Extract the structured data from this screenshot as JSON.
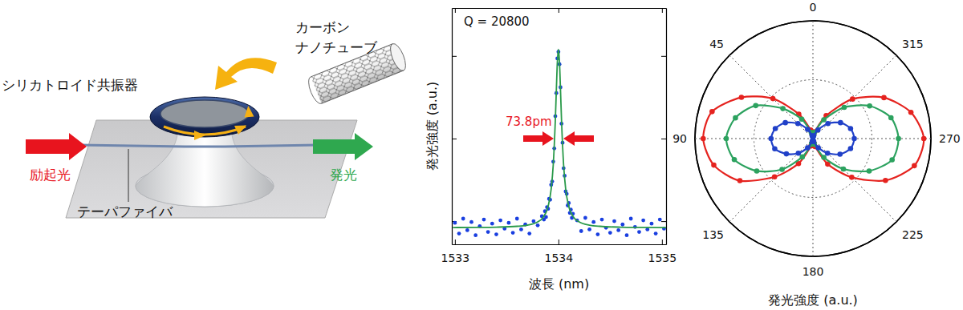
{
  "diagram": {
    "nanotube_label": [
      "カーボン",
      "ナノチューブ"
    ],
    "resonator_label": "シリカトロイド共振器",
    "excitation_label": "励起光",
    "emission_label": "発光",
    "fiber_label": "テーパファイバ"
  },
  "chart_data": [
    {
      "type": "scatter",
      "xlabel": "波長 (nm)",
      "ylabel": "発光強度 (a.u.)",
      "annotations": [
        {
          "text": "Q = 20800"
        },
        {
          "text": "73.8pm",
          "color": "#e8141e"
        }
      ],
      "xlim": [
        1532.97,
        1535.04
      ],
      "ylim": [
        -0.28,
        2.58
      ],
      "xticks": [
        1533,
        1534,
        1535
      ],
      "yticks": [
        0,
        1,
        2
      ],
      "tick_labels": "x",
      "series": [
        {
          "type": "scatter",
          "color": "#1a3fe0",
          "marker": "circle",
          "x": [
            1533,
            1533.04,
            1533.08,
            1533.12,
            1533.16,
            1533.2,
            1533.24,
            1533.28,
            1533.32,
            1533.36,
            1533.4,
            1533.44,
            1533.48,
            1533.52,
            1533.56,
            1533.6,
            1533.64,
            1533.68,
            1533.72,
            1533.76,
            1533.8,
            1533.84,
            1533.86,
            1533.87,
            1533.88,
            1533.89,
            1533.9,
            1533.91,
            1533.92,
            1533.93,
            1533.94,
            1533.95,
            1533.96,
            1533.97,
            1533.98,
            1533.99,
            1534,
            1534.01,
            1534.02,
            1534.03,
            1534.04,
            1534.05,
            1534.06,
            1534.07,
            1534.08,
            1534.09,
            1534.1,
            1534.11,
            1534.12,
            1534.13,
            1534.14,
            1534.18,
            1534.22,
            1534.26,
            1534.3,
            1534.34,
            1534.38,
            1534.42,
            1534.46,
            1534.5,
            1534.54,
            1534.58,
            1534.62,
            1534.66,
            1534.7,
            1534.74,
            1534.78,
            1534.82,
            1534.86,
            1534.9,
            1534.94,
            1534.98,
            1535.02
          ],
          "values": [
            -0.02,
            -0.15,
            0.03,
            -0.11,
            -0.01,
            -0.17,
            -0.06,
            0.02,
            -0.13,
            -0.03,
            -0.16,
            0.01,
            -0.09,
            -0.02,
            -0.14,
            0.03,
            -0.1,
            -0.04,
            -0.15,
            0,
            -0.05,
            0.06,
            0.02,
            0.12,
            0.05,
            0.17,
            0.15,
            0.27,
            0.26,
            0.44,
            0.48,
            0.72,
            0.88,
            1.27,
            1.55,
            1.97,
            2.05,
            1.9,
            1.62,
            1.18,
            0.95,
            0.64,
            0.55,
            0.36,
            0.33,
            0.19,
            0.22,
            0.1,
            0.14,
            0.04,
            0.09,
            0.01,
            -0.12,
            0.04,
            -0.1,
            -0.01,
            -0.16,
            0.02,
            -0.08,
            -0.14,
            0,
            -0.11,
            -0.04,
            -0.17,
            0.03,
            -0.07,
            -0.13,
            0.01,
            -0.1,
            -0.03,
            -0.15,
            0.02,
            -0.09
          ]
        },
        {
          "type": "line",
          "color": "#2a9a4a",
          "line_style": "solid",
          "x": [
            1532.98,
            1533.2,
            1533.4,
            1533.6,
            1533.7,
            1533.8,
            1533.85,
            1533.9,
            1533.93,
            1533.95,
            1533.97,
            1533.98,
            1533.99,
            1534,
            1534.01,
            1534.02,
            1534.03,
            1534.05,
            1534.07,
            1534.1,
            1534.15,
            1534.2,
            1534.3,
            1534.4,
            1534.6,
            1534.8,
            1535.04
          ],
          "values": [
            -0.077,
            -0.075,
            -0.072,
            -0.062,
            -0.048,
            -0.009,
            0.043,
            0.179,
            0.39,
            0.682,
            1.22,
            1.589,
            1.932,
            2.08,
            1.932,
            1.589,
            1.22,
            0.682,
            0.39,
            0.179,
            0.043,
            -0.009,
            -0.048,
            -0.062,
            -0.072,
            -0.075,
            -0.077
          ]
        }
      ]
    },
    {
      "type": "polar",
      "xlabel": "発光強度 (a.u.)",
      "x": [
        0,
        15,
        30,
        45,
        60,
        75,
        90,
        105,
        120,
        135,
        150,
        165,
        180,
        195,
        210,
        225,
        240,
        255,
        270,
        285,
        300,
        315,
        330,
        345
      ],
      "xticks": [
        0,
        45,
        90,
        135,
        180,
        225,
        270,
        315
      ],
      "ylim": [
        0,
        2
      ],
      "yticks": [
        0,
        1,
        2
      ],
      "tick_labels": "x",
      "grid": true,
      "series": [
        {
          "color": "#e5231f",
          "marker": "circle",
          "line_style": "solid",
          "values": [
            0.04,
            0.15,
            0.48,
            0.96,
            1.4,
            1.77,
            1.86,
            1.74,
            1.43,
            0.92,
            0.49,
            0.13,
            0.05,
            0.14,
            0.5,
            0.93,
            1.42,
            1.78,
            1.88,
            1.72,
            1.39,
            0.95,
            0.45,
            0.12
          ]
        },
        {
          "color": "#2ca25f",
          "marker": "circle",
          "line_style": "solid",
          "values": [
            0.03,
            0.11,
            0.38,
            0.72,
            1.12,
            1.36,
            1.47,
            1.38,
            1.1,
            0.74,
            0.36,
            0.1,
            0.04,
            0.1,
            0.37,
            0.73,
            1.1,
            1.39,
            1.45,
            1.37,
            1.11,
            0.75,
            0.37,
            0.11
          ]
        },
        {
          "color": "#2040c8",
          "marker": "circle",
          "line_style": "solid",
          "values": [
            0.02,
            0.05,
            0.18,
            0.36,
            0.54,
            0.66,
            0.71,
            0.67,
            0.52,
            0.35,
            0.18,
            0.05,
            0.02,
            0.05,
            0.18,
            0.35,
            0.53,
            0.66,
            0.7,
            0.66,
            0.54,
            0.36,
            0.17,
            0.05
          ]
        }
      ]
    }
  ]
}
